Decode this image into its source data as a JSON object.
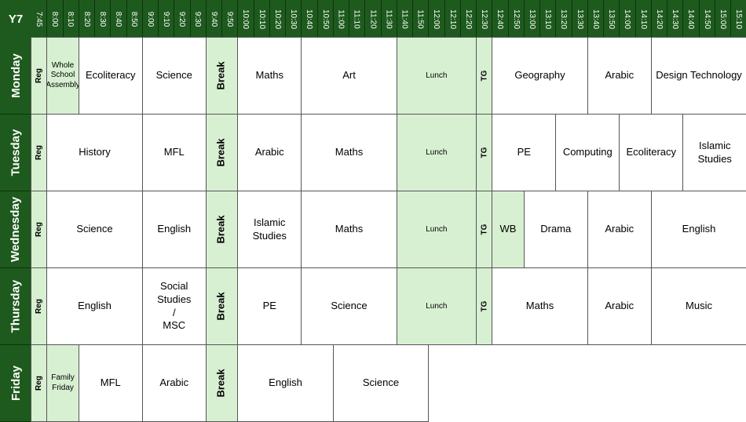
{
  "corner_label": "Y7",
  "times": [
    "7:45",
    "8:00",
    "8:10",
    "8:20",
    "8:30",
    "8:40",
    "8:50",
    "9:00",
    "9:10",
    "9:20",
    "9:30",
    "9:40",
    "9:50",
    "10:00",
    "10:10",
    "10:20",
    "10:30",
    "10:40",
    "10:50",
    "11:00",
    "11:10",
    "11:20",
    "11:30",
    "11:40",
    "11:50",
    "12:00",
    "12:10",
    "12:20",
    "12:30",
    "12:40",
    "12:50",
    "13:00",
    "13:10",
    "13:20",
    "13:30",
    "13:40",
    "13:50",
    "14:00",
    "14:10",
    "14:20",
    "14:30",
    "14:40",
    "14:50",
    "15:00",
    "15:10"
  ],
  "colors": {
    "header": "#1e5a1e",
    "highlight": "#d8f0d2",
    "border": "#555555"
  },
  "days": [
    {
      "name": "Monday",
      "slots": [
        {
          "label": "Reg",
          "span": 1,
          "kind": "vert",
          "green": true
        },
        {
          "label": "Whole\nSchool\nAssembly",
          "span": 2,
          "green": true,
          "small": true
        },
        {
          "label": "Ecoliteracy",
          "span": 4
        },
        {
          "label": "Science",
          "span": 4
        },
        {
          "label": "Break",
          "span": 2,
          "kind": "break",
          "green": true
        },
        {
          "label": "Maths",
          "span": 4
        },
        {
          "label": "Art",
          "span": 6
        },
        {
          "label": "Lunch",
          "span": 5,
          "kind": "lunch",
          "green": true
        },
        {
          "label": "TG",
          "span": 1,
          "kind": "vert",
          "green": true
        },
        {
          "label": "Geography",
          "span": 6
        },
        {
          "label": "Arabic",
          "span": 4
        },
        {
          "label": "Design Technology",
          "span": 6
        }
      ]
    },
    {
      "name": "Tuesday",
      "slots": [
        {
          "label": "Reg",
          "span": 1,
          "kind": "vert",
          "green": true
        },
        {
          "label": "History",
          "span": 6
        },
        {
          "label": "MFL",
          "span": 4
        },
        {
          "label": "Break",
          "span": 2,
          "kind": "break",
          "green": true
        },
        {
          "label": "Arabic",
          "span": 4
        },
        {
          "label": "Maths",
          "span": 6
        },
        {
          "label": "Lunch",
          "span": 5,
          "kind": "lunch",
          "green": true
        },
        {
          "label": "TG",
          "span": 1,
          "kind": "vert",
          "green": true
        },
        {
          "label": "PE",
          "span": 4
        },
        {
          "label": "Computing",
          "span": 4
        },
        {
          "label": "Ecoliteracy",
          "span": 4
        },
        {
          "label": "Islamic\nStudies",
          "span": 4
        }
      ]
    },
    {
      "name": "Wednesday",
      "slots": [
        {
          "label": "Reg",
          "span": 1,
          "kind": "vert",
          "green": true
        },
        {
          "label": "Science",
          "span": 6
        },
        {
          "label": "English",
          "span": 4
        },
        {
          "label": "Break",
          "span": 2,
          "kind": "break",
          "green": true
        },
        {
          "label": "Islamic\nStudies",
          "span": 4
        },
        {
          "label": "Maths",
          "span": 6
        },
        {
          "label": "Lunch",
          "span": 5,
          "kind": "lunch",
          "green": true
        },
        {
          "label": "TG",
          "span": 1,
          "kind": "vert",
          "green": true
        },
        {
          "label": "WB",
          "span": 2,
          "green": true
        },
        {
          "label": "Drama",
          "span": 4
        },
        {
          "label": "Arabic",
          "span": 4
        },
        {
          "label": "English",
          "span": 6
        }
      ]
    },
    {
      "name": "Thursday",
      "slots": [
        {
          "label": "Reg",
          "span": 1,
          "kind": "vert",
          "green": true
        },
        {
          "label": "English",
          "span": 6
        },
        {
          "label": "Social Studies\n/\nMSC",
          "span": 4
        },
        {
          "label": "Break",
          "span": 2,
          "kind": "break",
          "green": true
        },
        {
          "label": "PE",
          "span": 4
        },
        {
          "label": "Science",
          "span": 6
        },
        {
          "label": "Lunch",
          "span": 5,
          "kind": "lunch",
          "green": true
        },
        {
          "label": "TG",
          "span": 1,
          "kind": "vert",
          "green": true
        },
        {
          "label": "Maths",
          "span": 6
        },
        {
          "label": "Arabic",
          "span": 4
        },
        {
          "label": "Music",
          "span": 6
        }
      ]
    },
    {
      "name": "Friday",
      "slots": [
        {
          "label": "Reg",
          "span": 1,
          "kind": "vert",
          "green": true
        },
        {
          "label": "Family\nFriday",
          "span": 2,
          "green": true,
          "small": true
        },
        {
          "label": "MFL",
          "span": 4
        },
        {
          "label": "Arabic",
          "span": 4
        },
        {
          "label": "Break",
          "span": 2,
          "kind": "break",
          "green": true
        },
        {
          "label": "English",
          "span": 6
        },
        {
          "label": "Science",
          "span": 6
        }
      ]
    }
  ]
}
